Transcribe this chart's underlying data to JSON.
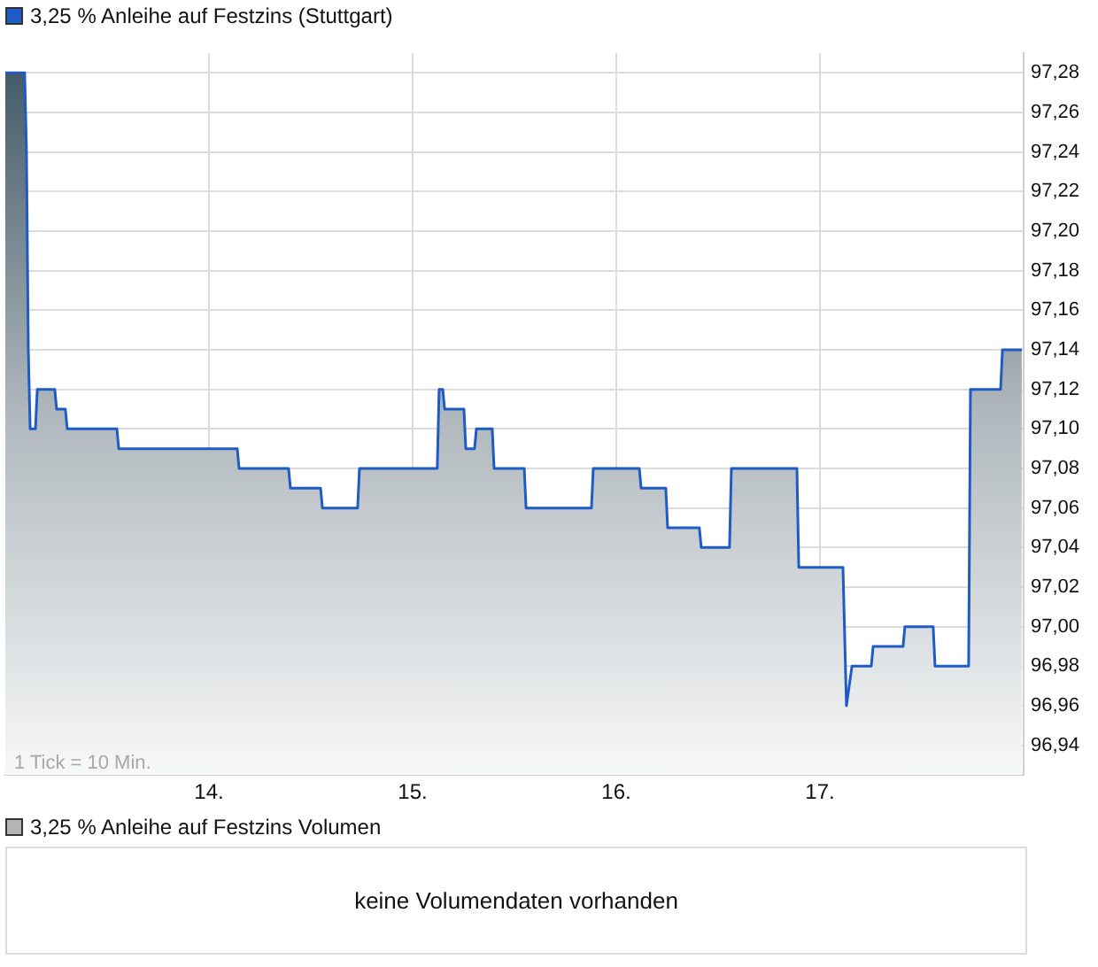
{
  "chart_data": [
    {
      "type": "area",
      "legend": "top left",
      "grid": true,
      "line_style": "solid",
      "marker": "none",
      "xlim": [
        13,
        18
      ],
      "ylim": [
        96.925,
        97.29
      ],
      "xticks": [
        {
          "value": 14,
          "label": "14."
        },
        {
          "value": 15,
          "label": "15."
        },
        {
          "value": 16,
          "label": "16."
        },
        {
          "value": 17,
          "label": "17."
        }
      ],
      "yticks": [
        {
          "value": 96.94,
          "label": "96,94"
        },
        {
          "value": 96.96,
          "label": "96,96"
        },
        {
          "value": 96.98,
          "label": "96,98"
        },
        {
          "value": 97.0,
          "label": "97,00"
        },
        {
          "value": 97.02,
          "label": "97,02"
        },
        {
          "value": 97.04,
          "label": "97,04"
        },
        {
          "value": 97.06,
          "label": "97,06"
        },
        {
          "value": 97.08,
          "label": "97,08"
        },
        {
          "value": 97.1,
          "label": "97,10"
        },
        {
          "value": 97.12,
          "label": "97,12"
        },
        {
          "value": 97.14,
          "label": "97,14"
        },
        {
          "value": 97.16,
          "label": "97,16"
        },
        {
          "value": 97.18,
          "label": "97,18"
        },
        {
          "value": 97.2,
          "label": "97,20"
        },
        {
          "value": 97.22,
          "label": "97,22"
        },
        {
          "value": 97.24,
          "label": "97,24"
        },
        {
          "value": 97.26,
          "label": "97,26"
        },
        {
          "value": 97.28,
          "label": "97,28"
        }
      ],
      "annotations": [
        "1 Tick = 10 Min."
      ],
      "x": [
        13.0,
        13.095,
        13.104,
        13.113,
        13.122,
        13.148,
        13.157,
        13.243,
        13.252,
        13.295,
        13.304,
        13.548,
        13.557,
        14.139,
        14.148,
        14.391,
        14.4,
        14.548,
        14.557,
        14.73,
        14.739,
        15.121,
        15.13,
        15.148,
        15.157,
        15.252,
        15.261,
        15.304,
        15.313,
        15.391,
        15.4,
        15.548,
        15.557,
        15.878,
        15.887,
        16.113,
        16.122,
        16.243,
        16.252,
        16.408,
        16.417,
        16.556,
        16.565,
        16.887,
        16.896,
        17.113,
        17.13,
        17.157,
        17.252,
        17.261,
        17.408,
        17.417,
        17.556,
        17.565,
        17.73,
        17.739,
        17.887,
        17.896,
        17.991
      ],
      "series": [
        {
          "name": "3,25 % Anleihe auf Festzins (Stuttgart)",
          "color": "#1f5bc4",
          "values": [
            97.28,
            97.28,
            97.24,
            97.14,
            97.1,
            97.1,
            97.12,
            97.12,
            97.11,
            97.11,
            97.1,
            97.1,
            97.09,
            97.09,
            97.08,
            97.08,
            97.07,
            97.07,
            97.06,
            97.06,
            97.08,
            97.08,
            97.12,
            97.12,
            97.11,
            97.11,
            97.09,
            97.09,
            97.1,
            97.1,
            97.08,
            97.08,
            97.06,
            97.06,
            97.08,
            97.08,
            97.07,
            97.07,
            97.05,
            97.05,
            97.04,
            97.04,
            97.08,
            97.08,
            97.03,
            97.03,
            96.96,
            96.98,
            96.98,
            96.99,
            96.99,
            97.0,
            97.0,
            96.98,
            96.98,
            97.12,
            97.12,
            97.14,
            97.14
          ]
        }
      ]
    },
    {
      "type": "other",
      "title": "3,25 % Anleihe auf Festzins Volumen",
      "annotations": [
        "keine Volumendaten vorhanden"
      ]
    }
  ]
}
